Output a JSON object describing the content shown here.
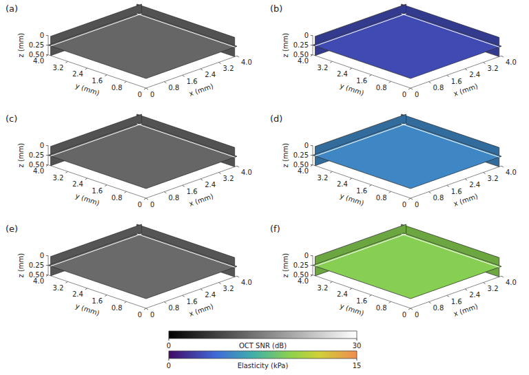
{
  "chart_data": [
    {
      "type": "volume",
      "panel": "(a)",
      "value": 12,
      "xlabel": "x (mm)",
      "ylabel": "y (mm)",
      "zlabel": "z (mm)",
      "xlim": [
        0,
        4
      ],
      "xticks": [
        0,
        0.8,
        1.6,
        2.4,
        3.2,
        {
          "value": 4,
          "label": "4.0"
        }
      ],
      "ylim": [
        0,
        4
      ],
      "yticks": [
        0,
        0.8,
        1.6,
        2.4,
        3.2,
        {
          "value": 4,
          "label": "4.0"
        }
      ],
      "zlim": [
        0,
        0.5
      ],
      "zticks": [
        0,
        0.25,
        {
          "value": 0.5,
          "label": "0.50"
        }
      ],
      "slices": {
        "x": 3.9,
        "y": 3.9,
        "z": 0.25
      }
    },
    {
      "type": "volume",
      "panel": "(b)",
      "value": 2.5,
      "xlabel": "x (mm)",
      "ylabel": "y (mm)",
      "zlabel": "z (mm)",
      "xlim": [
        0,
        4
      ],
      "xticks": [
        0,
        0.8,
        1.6,
        2.4,
        3.2,
        {
          "value": 4,
          "label": "4.0"
        }
      ],
      "ylim": [
        0,
        4
      ],
      "yticks": [
        0,
        0.8,
        1.6,
        2.4,
        3.2,
        {
          "value": 4,
          "label": "4.0"
        }
      ],
      "zlim": [
        0,
        0.5
      ],
      "zticks": [
        0,
        0.25,
        {
          "value": 0.5,
          "label": "0.50"
        }
      ],
      "slices": {
        "x": 3.9,
        "y": 3.9,
        "z": 0.25
      }
    },
    {
      "type": "volume",
      "panel": "(c)",
      "value": 12,
      "xlabel": "x (mm)",
      "ylabel": "y (mm)",
      "zlabel": "z (mm)",
      "xlim": [
        0,
        4
      ],
      "xticks": [
        0,
        0.8,
        1.6,
        2.4,
        3.2,
        {
          "value": 4,
          "label": "4.0"
        }
      ],
      "ylim": [
        0,
        4
      ],
      "yticks": [
        0,
        0.8,
        1.6,
        2.4,
        3.2,
        {
          "value": 4,
          "label": "4.0"
        }
      ],
      "zlim": [
        0,
        0.5
      ],
      "zticks": [
        0,
        0.25,
        {
          "value": 0.5,
          "label": "0.50"
        }
      ],
      "slices": {
        "x": 3.9,
        "y": 3.9,
        "z": 0.25
      }
    },
    {
      "type": "volume",
      "panel": "(d)",
      "value": 5,
      "xlabel": "x (mm)",
      "ylabel": "y (mm)",
      "zlabel": "z (mm)",
      "xlim": [
        0,
        4
      ],
      "xticks": [
        0,
        0.8,
        1.6,
        2.4,
        3.2,
        {
          "value": 4,
          "label": "4.0"
        }
      ],
      "ylim": [
        0,
        4
      ],
      "yticks": [
        0,
        0.8,
        1.6,
        2.4,
        3.2,
        {
          "value": 4,
          "label": "4.0"
        }
      ],
      "zlim": [
        0,
        0.5
      ],
      "zticks": [
        0,
        0.25,
        {
          "value": 0.5,
          "label": "0.50"
        }
      ],
      "slices": {
        "x": 3.9,
        "y": 3.9,
        "z": 0.25
      }
    },
    {
      "type": "volume",
      "panel": "(e)",
      "value": 12.5,
      "xlabel": "x (mm)",
      "ylabel": "y (mm)",
      "zlabel": "z (mm)",
      "xlim": [
        0,
        4
      ],
      "xticks": [
        0,
        0.8,
        1.6,
        2.4,
        3.2,
        {
          "value": 4,
          "label": "4.0"
        }
      ],
      "ylim": [
        0,
        4
      ],
      "yticks": [
        0,
        0.8,
        1.6,
        2.4,
        3.2,
        {
          "value": 4,
          "label": "4.0"
        }
      ],
      "zlim": [
        0,
        0.5
      ],
      "zticks": [
        0,
        0.25,
        {
          "value": 0.5,
          "label": "0.50"
        }
      ],
      "slices": {
        "x": 3.9,
        "y": 3.9,
        "z": 0.25
      }
    },
    {
      "type": "volume",
      "panel": "(f)",
      "value": 9.5,
      "xlabel": "x (mm)",
      "ylabel": "y (mm)",
      "zlabel": "z (mm)",
      "xlim": [
        0,
        4
      ],
      "xticks": [
        0,
        0.8,
        1.6,
        2.4,
        3.2,
        {
          "value": 4,
          "label": "4.0"
        }
      ],
      "ylim": [
        0,
        4
      ],
      "yticks": [
        0,
        0.8,
        1.6,
        2.4,
        3.2,
        {
          "value": 4,
          "label": "4.0"
        }
      ],
      "zlim": [
        0,
        0.5
      ],
      "zticks": [
        0,
        0.25,
        {
          "value": 0.5,
          "label": "0.50"
        }
      ],
      "slices": {
        "x": 3.9,
        "y": 3.9,
        "z": 0.25
      }
    }
  ],
  "colorbars": [
    {
      "label": "OCT SNR (dB)",
      "range": [
        0,
        30
      ],
      "ticks": [
        0,
        30
      ],
      "panels": [
        "(a)",
        "(c)",
        "(e)"
      ]
    },
    {
      "label": "Elasticity (kPa)",
      "range": [
        0,
        15
      ],
      "ticks": [
        0,
        15
      ],
      "panels": [
        "(b)",
        "(d)",
        "(f)"
      ]
    }
  ]
}
